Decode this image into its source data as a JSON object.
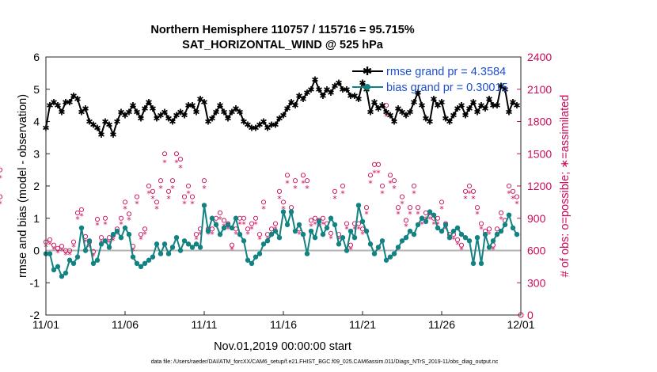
{
  "chart_data": {
    "type": "line",
    "title": "Northern Hemisphere 110757 / 115716 = 95.715%",
    "subtitle": "SAT_HORIZONTAL_WIND @ 525 hPa",
    "xlabel": "Nov.01,2019 00:00:00 start",
    "ylabel_left": "rmse and bias (model - observation)",
    "ylabel_right": "# of obs: o=possible; ∗=assimilated",
    "footnote": "data file: /Users/raeder/DAI/ATM_forcXX/CAM6_setup/f.e21.FHIST_BGC.f09_025.CAM6assim.011/Diags_NTrS_2019-11/obs_diag_output.nc",
    "xlim": [
      0,
      30
    ],
    "ylim_left": [
      -2,
      6
    ],
    "ylim_right": [
      0,
      2400
    ],
    "x_ticks": [
      0,
      5,
      10,
      15,
      20,
      25,
      30
    ],
    "x_tick_labels": [
      "11/01",
      "11/06",
      "11/11",
      "11/16",
      "11/21",
      "11/26",
      "12/01"
    ],
    "y_ticks_left": [
      -2,
      -1,
      0,
      1,
      2,
      3,
      4,
      5,
      6
    ],
    "y_ticks_right": [
      0,
      300,
      600,
      900,
      1200,
      1500,
      1800,
      2100,
      2400
    ],
    "colors": {
      "rmse": "#000000",
      "bias": "#138282",
      "obs": "#cc0a5a",
      "zero": "#b4b4b4",
      "right_axis": "#cc0a5a"
    },
    "x": [
      0.0,
      0.25,
      0.5,
      0.75,
      1.0,
      1.25,
      1.5,
      1.75,
      2.0,
      2.25,
      2.5,
      2.75,
      3.0,
      3.25,
      3.5,
      3.75,
      4.0,
      4.25,
      4.5,
      4.75,
      5.0,
      5.25,
      5.5,
      5.75,
      6.0,
      6.25,
      6.5,
      6.75,
      7.0,
      7.25,
      7.5,
      7.75,
      8.0,
      8.25,
      8.5,
      8.75,
      9.0,
      9.25,
      9.5,
      9.75,
      10.0,
      10.25,
      10.5,
      10.75,
      11.0,
      11.25,
      11.5,
      11.75,
      12.0,
      12.25,
      12.5,
      12.75,
      13.0,
      13.25,
      13.5,
      13.75,
      14.0,
      14.25,
      14.5,
      14.75,
      15.0,
      15.25,
      15.5,
      15.75,
      16.0,
      16.25,
      16.5,
      16.75,
      17.0,
      17.25,
      17.5,
      17.75,
      18.0,
      18.25,
      18.5,
      18.75,
      19.0,
      19.25,
      19.5,
      19.75,
      20.0,
      20.25,
      20.5,
      20.75,
      21.0,
      21.25,
      21.5,
      21.75,
      22.0,
      22.25,
      22.5,
      22.75,
      23.0,
      23.25,
      23.5,
      23.75,
      24.0,
      24.25,
      24.5,
      24.75,
      25.0,
      25.25,
      25.5,
      25.75,
      26.0,
      26.25,
      26.5,
      26.75,
      27.0,
      27.25,
      27.5,
      27.75,
      28.0,
      28.25,
      28.5,
      28.75,
      29.0,
      29.25,
      29.5,
      29.75
    ],
    "series": [
      {
        "name": "rmse grand pr = 4.3584",
        "marker": "asterisk",
        "values": [
          3.8,
          4.5,
          4.6,
          4.5,
          4.3,
          4.6,
          4.6,
          4.8,
          4.7,
          4.3,
          4.4,
          4.0,
          3.9,
          3.8,
          3.6,
          4.0,
          3.9,
          3.6,
          4.0,
          4.3,
          4.2,
          4.3,
          4.5,
          4.3,
          4.1,
          4.4,
          4.6,
          4.4,
          4.1,
          4.2,
          4.3,
          4.1,
          4.0,
          4.2,
          4.3,
          4.2,
          4.5,
          4.5,
          4.3,
          4.7,
          4.6,
          4.0,
          4.1,
          4.3,
          4.5,
          4.3,
          4.1,
          4.3,
          4.4,
          4.3,
          4.0,
          3.9,
          3.8,
          3.8,
          3.9,
          4.0,
          3.8,
          3.9,
          3.9,
          4.1,
          4.2,
          4.4,
          4.6,
          4.5,
          4.8,
          4.7,
          4.9,
          5.0,
          5.3,
          5.0,
          4.8,
          5.0,
          4.9,
          5.1,
          5.2,
          5.0,
          5.0,
          4.8,
          4.8,
          4.7,
          5.2,
          5.0,
          4.3,
          4.6,
          4.4,
          4.5,
          4.3,
          4.2,
          4.0,
          4.4,
          4.3,
          4.2,
          4.3,
          4.6,
          4.9,
          4.5,
          4.1,
          4.0,
          4.7,
          4.5,
          4.6,
          4.1,
          4.0,
          4.2,
          4.4,
          4.5,
          4.2,
          4.4,
          4.6,
          4.3,
          4.5,
          4.4,
          4.7,
          4.5,
          4.5,
          5.1,
          5.0,
          4.3,
          4.6,
          4.5
        ]
      },
      {
        "name": "bias grand pr = 0.30015",
        "marker": "dot",
        "values": [
          -0.1,
          -0.1,
          -0.6,
          -0.5,
          -0.8,
          -0.7,
          -0.3,
          -0.4,
          -0.2,
          0.7,
          0.0,
          0.3,
          -0.4,
          -0.3,
          0.2,
          0.3,
          0.1,
          0.5,
          0.6,
          0.4,
          0.7,
          0.5,
          -0.2,
          -0.4,
          -0.5,
          -0.4,
          -0.3,
          -0.2,
          0.2,
          -0.1,
          0.2,
          -0.1,
          0.1,
          0.4,
          0.0,
          0.3,
          0.2,
          0.1,
          0.2,
          0.1,
          1.4,
          0.6,
          1.0,
          0.8,
          0.5,
          0.7,
          0.8,
          0.7,
          1.0,
          0.5,
          0.3,
          -0.3,
          -0.4,
          -0.2,
          -0.1,
          0.2,
          0.3,
          0.5,
          0.6,
          0.4,
          1.2,
          0.8,
          1.2,
          0.6,
          0.8,
          0.5,
          -0.1,
          0.6,
          0.4,
          0.9,
          0.5,
          0.7,
          1.0,
          0.8,
          0.2,
          0.4,
          0.0,
          0.6,
          0.4,
          1.4,
          0.9,
          0.6,
          0.2,
          -0.1,
          0.1,
          0.3,
          -0.3,
          -0.2,
          -0.1,
          0.1,
          0.3,
          0.4,
          0.6,
          0.5,
          0.8,
          1.0,
          0.9,
          1.2,
          1.1,
          0.7,
          0.6,
          0.8,
          0.4,
          0.6,
          0.7,
          0.5,
          0.4,
          0.3,
          -0.4,
          0.4,
          -0.4,
          0.5,
          0.1,
          0.3,
          0.5,
          0.6,
          0.8,
          1.1,
          0.7,
          0.5
        ]
      }
    ],
    "obs_possible": [
      680,
      700,
      650,
      620,
      640,
      600,
      600,
      680,
      950,
      980,
      730,
      680,
      590,
      890,
      720,
      900,
      720,
      740,
      800,
      900,
      1050,
      940,
      640,
      1100,
      750,
      800,
      1200,
      1150,
      1050,
      1250,
      1500,
      1150,
      1250,
      1500,
      1450,
      1100,
      1200,
      1100,
      750,
      800,
      1250,
      800,
      800,
      900,
      950,
      880,
      850,
      650,
      800,
      900,
      900,
      800,
      850,
      900,
      750,
      1050,
      750,
      800,
      850,
      1150,
      1050,
      1300,
      1000,
      1250,
      800,
      1300,
      1250,
      880,
      900,
      880,
      900,
      850,
      760,
      1150,
      750,
      1200,
      850,
      650,
      850,
      850,
      800,
      1000,
      1300,
      1400,
      1400,
      1200,
      1950,
      1300,
      1250,
      1000,
      1100,
      880,
      1000,
      1200,
      1000,
      900,
      950,
      950,
      900,
      900,
      1050,
      850,
      750,
      750,
      700,
      650,
      1150,
      1200,
      1150,
      1000,
      850,
      780,
      800,
      650,
      800,
      950,
      880,
      1200,
      1150,
      1100,
      1350,
      1100
    ]
  },
  "legend": {
    "rmse_label": "rmse grand pr = 4.3584",
    "bias_label": "bias grand pr = 0.30015"
  }
}
